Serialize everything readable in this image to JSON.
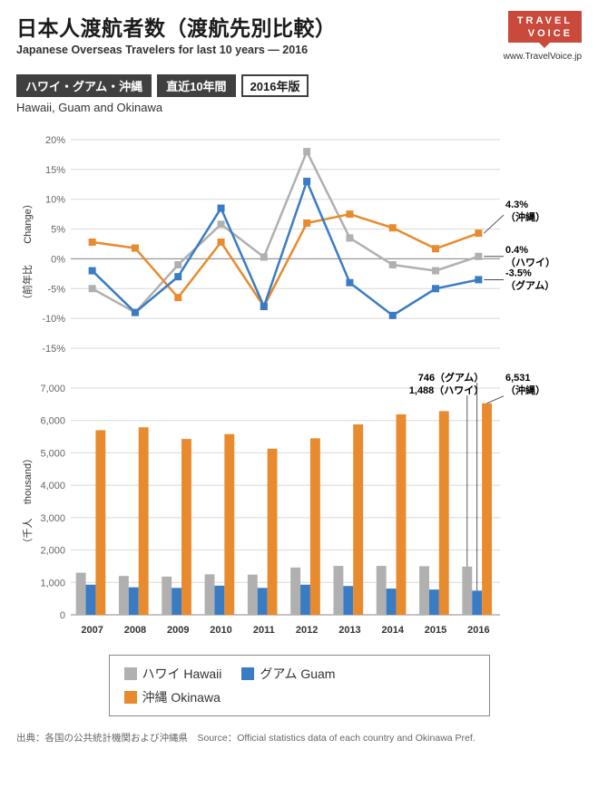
{
  "header": {
    "title_jp": "日本人渡航者数（渡航先別比較）",
    "title_en": "Japanese Overseas Travelers for last 10 years — 2016",
    "logo_line1": "TRAVEL",
    "logo_line2": "VOICE",
    "logo_url": "www.TravelVoice.jp"
  },
  "badges": {
    "region": "ハワイ・グアム・沖縄",
    "period": "直近10年間",
    "edition": "2016年版",
    "region_en": "Hawaii, Guam and Okinawa"
  },
  "colors": {
    "hawaii": "#b0b0b0",
    "guam": "#3a7cc4",
    "okinawa": "#e88b2e",
    "grid": "#d8d8d8",
    "axis": "#888888",
    "anno_line": "#333333"
  },
  "categories": [
    "2007",
    "2008",
    "2009",
    "2010",
    "2011",
    "2012",
    "2013",
    "2014",
    "2015",
    "2016"
  ],
  "line_chart": {
    "ylabel_jp": "（前年比",
    "ylabel_en": "Change）",
    "ylim": [
      -15,
      20
    ],
    "ytick_step": 5,
    "series": {
      "hawaii": [
        -5.0,
        -9.0,
        -1.0,
        5.8,
        0.3,
        18.0,
        3.5,
        -1.0,
        -2.0,
        0.4
      ],
      "guam": [
        -2.0,
        -9.0,
        -3.0,
        8.5,
        -8.0,
        13.0,
        -4.0,
        -9.5,
        -5.0,
        -3.5
      ],
      "okinawa": [
        2.8,
        1.8,
        -6.5,
        2.8,
        -8.0,
        6.0,
        7.5,
        5.2,
        1.7,
        4.3
      ]
    },
    "annotations": {
      "okinawa": {
        "value": "4.3%",
        "label": "（沖縄）"
      },
      "hawaii": {
        "value": "0.4%",
        "label": "（ハワイ）"
      },
      "guam": {
        "value": "-3.5%",
        "label": "（グアム）"
      }
    }
  },
  "bar_chart": {
    "ylabel_jp": "（千人",
    "ylabel_en": "thousand）",
    "ylim": [
      0,
      7000
    ],
    "ytick_step": 1000,
    "series": {
      "hawaii": [
        1300,
        1200,
        1180,
        1250,
        1240,
        1460,
        1510,
        1510,
        1500,
        1488
      ],
      "guam": [
        930,
        850,
        830,
        900,
        830,
        930,
        890,
        810,
        780,
        746
      ],
      "okinawa": [
        5700,
        5790,
        5430,
        5580,
        5130,
        5450,
        5880,
        6190,
        6290,
        6531
      ]
    },
    "annotations": {
      "guam": {
        "text": "746（グアム）"
      },
      "hawaii": {
        "text": "1,488（ハワイ）"
      },
      "okinawa": {
        "value": "6,531",
        "label": "（沖縄）"
      }
    }
  },
  "legend": {
    "hawaii": "ハワイ Hawaii",
    "guam": "グアム Guam",
    "okinawa": "沖縄 Okinawa"
  },
  "source": "出典：各国の公共統計機関および沖縄県　Source：Official statistics data of each country and Okinawa Pref."
}
